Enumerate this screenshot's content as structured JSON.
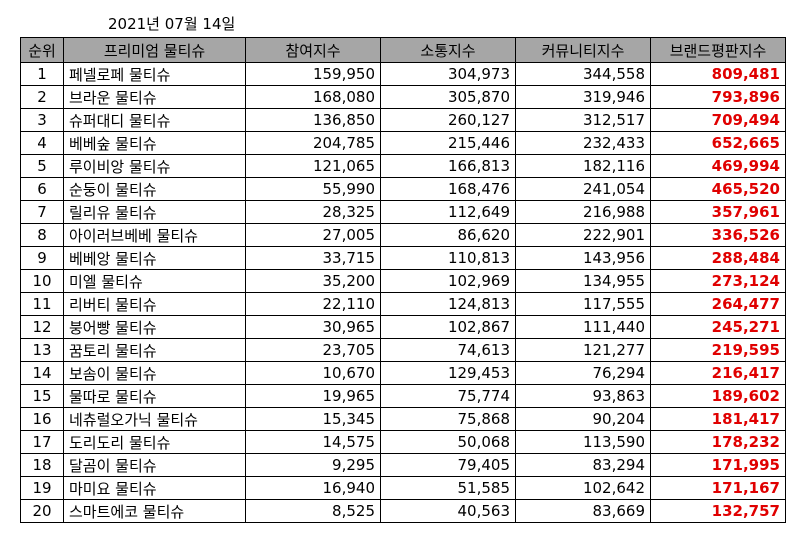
{
  "date": "2021년 07월 14일",
  "headers": [
    "순위",
    "프리미엄 물티슈",
    "참여지수",
    "소통지수",
    "커뮤니티지수",
    "브랜드평판지수"
  ],
  "rows": [
    [
      "1",
      "페넬로페 물티슈",
      "159,950",
      "304,973",
      "344,558",
      "809,481"
    ],
    [
      "2",
      "브라운 물티슈",
      "168,080",
      "305,870",
      "319,946",
      "793,896"
    ],
    [
      "3",
      "슈퍼대디 물티슈",
      "136,850",
      "260,127",
      "312,517",
      "709,494"
    ],
    [
      "4",
      "베베숲 물티슈",
      "204,785",
      "215,446",
      "232,433",
      "652,665"
    ],
    [
      "5",
      "루이비앙 물티슈",
      "121,065",
      "166,813",
      "182,116",
      "469,994"
    ],
    [
      "6",
      "순둥이 물티슈",
      "55,990",
      "168,476",
      "241,054",
      "465,520"
    ],
    [
      "7",
      "릴리유 물티슈",
      "28,325",
      "112,649",
      "216,988",
      "357,961"
    ],
    [
      "8",
      "아이러브베베 물티슈",
      "27,005",
      "86,620",
      "222,901",
      "336,526"
    ],
    [
      "9",
      "베베앙 물티슈",
      "33,715",
      "110,813",
      "143,956",
      "288,484"
    ],
    [
      "10",
      "미엘 물티슈",
      "35,200",
      "102,969",
      "134,955",
      "273,124"
    ],
    [
      "11",
      "리버티 물티슈",
      "22,110",
      "124,813",
      "117,555",
      "264,477"
    ],
    [
      "12",
      "붕어빵 물티슈",
      "30,965",
      "102,867",
      "111,440",
      "245,271"
    ],
    [
      "13",
      "꿈토리 물티슈",
      "23,705",
      "74,613",
      "121,277",
      "219,595"
    ],
    [
      "14",
      "보솜이 물티슈",
      "10,670",
      "129,453",
      "76,294",
      "216,417"
    ],
    [
      "15",
      "물따로 물티슈",
      "19,965",
      "75,774",
      "93,863",
      "189,602"
    ],
    [
      "16",
      "네츄럴오가닉 물티슈",
      "15,345",
      "75,868",
      "90,204",
      "181,417"
    ],
    [
      "17",
      "도리도리 물티슈",
      "14,575",
      "50,068",
      "113,590",
      "178,232"
    ],
    [
      "18",
      "달곰이 물티슈",
      "9,295",
      "79,405",
      "83,294",
      "171,995"
    ],
    [
      "19",
      "마미요 물티슈",
      "16,940",
      "51,585",
      "102,642",
      "171,167"
    ],
    [
      "20",
      "스마트에코 물티슈",
      "8,525",
      "40,563",
      "83,669",
      "132,757"
    ]
  ],
  "colors": {
    "header_bg": "#a6a6a6",
    "score_text": "#e00000"
  }
}
